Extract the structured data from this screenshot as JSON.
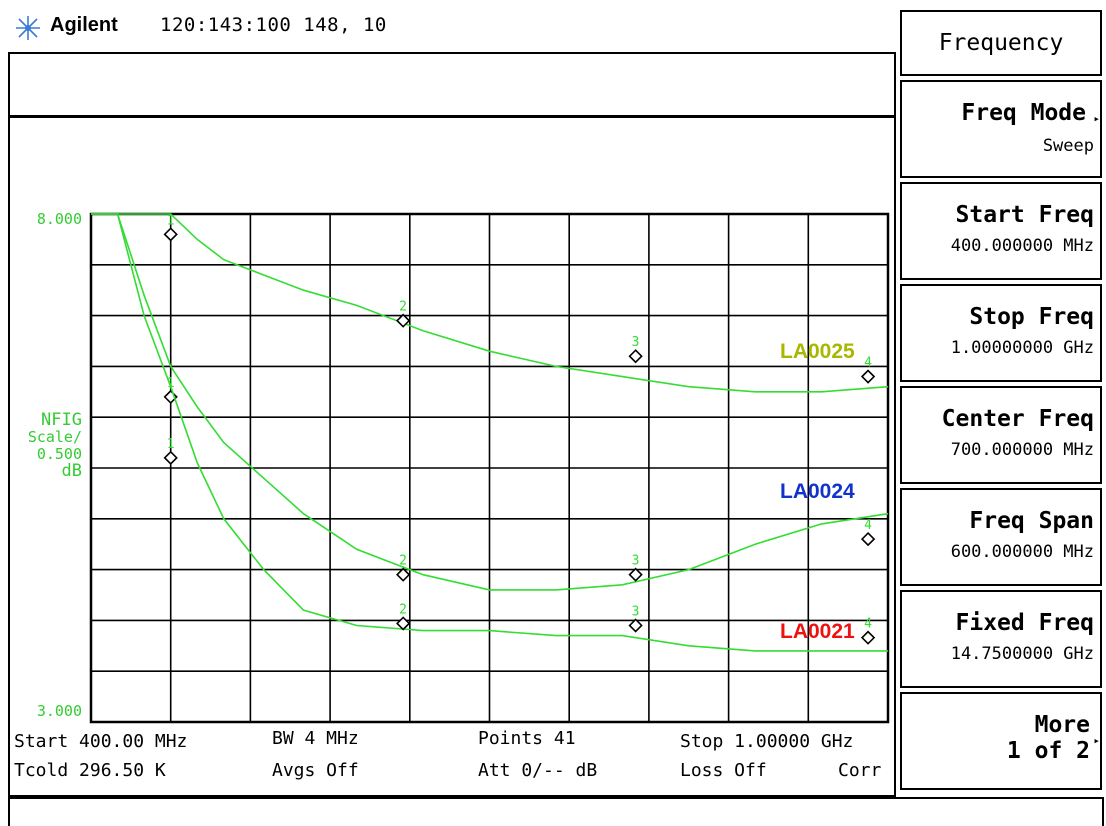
{
  "header": {
    "brand": "Agilent",
    "status": "120:143:100  148,  10"
  },
  "softkeys": {
    "menu_title": "Frequency",
    "items": [
      {
        "label": "Freq Mode",
        "value": "Sweep"
      },
      {
        "label": "Start Freq",
        "value": "400.000000 MHz"
      },
      {
        "label": "Stop Freq",
        "value": "1.00000000 GHz"
      },
      {
        "label": "Center Freq",
        "value": "700.000000 MHz"
      },
      {
        "label": "Freq Span",
        "value": "600.000000 MHz"
      },
      {
        "label": "Fixed Freq",
        "value": "14.7500000 GHz"
      },
      {
        "label": "More",
        "value": "1 of 2"
      }
    ]
  },
  "display": {
    "y_top": "8.000",
    "y_bottom": "3.000",
    "scale_lines": [
      "NFIG",
      "Scale/",
      "0.500",
      "dB"
    ]
  },
  "footer": {
    "start": "Start 400.00 MHz",
    "bw": "BW 4 MHz",
    "points": "Points 41",
    "stop": "Stop 1.00000 GHz",
    "tcold": "Tcold 296.50 K",
    "avgs": "Avgs Off",
    "att": "Att 0/-- dB",
    "loss": "Loss Off",
    "corr": "Corr"
  },
  "colors": {
    "trace": "#33dd33",
    "grid": "#000000",
    "LA0025": "#a8b800",
    "LA0024": "#1133cc",
    "LA0021": "#ee1111"
  },
  "chart_data": {
    "type": "line",
    "x_start_mhz": 400,
    "x_stop_mhz": 1000,
    "ylim": [
      3.0,
      8.0
    ],
    "series": [
      {
        "name": "LA0025",
        "x": [
          400,
          430,
          460,
          480,
          500,
          530,
          560,
          600,
          650,
          700,
          750,
          800,
          850,
          900,
          950,
          1000
        ],
        "y": [
          8.0,
          8.0,
          8.0,
          7.75,
          7.55,
          7.4,
          7.25,
          7.1,
          6.85,
          6.65,
          6.5,
          6.4,
          6.3,
          6.25,
          6.25,
          6.3
        ],
        "markers": [
          {
            "n": "1",
            "x": 460,
            "y": 7.8
          },
          {
            "n": "2",
            "x": 635,
            "y": 6.95
          },
          {
            "n": "3",
            "x": 810,
            "y": 6.6
          },
          {
            "n": "4",
            "x": 985,
            "y": 6.4
          }
        ]
      },
      {
        "name": "LA0024",
        "x": [
          400,
          420,
          440,
          460,
          480,
          500,
          530,
          560,
          600,
          650,
          700,
          750,
          800,
          850,
          900,
          950,
          1000
        ],
        "y": [
          8.0,
          8.0,
          7.2,
          6.5,
          6.1,
          5.75,
          5.4,
          5.05,
          4.7,
          4.45,
          4.3,
          4.3,
          4.35,
          4.5,
          4.75,
          4.95,
          5.05
        ],
        "markers": [
          {
            "n": "1",
            "x": 460,
            "y": 6.2
          },
          {
            "n": "2",
            "x": 635,
            "y": 4.45
          },
          {
            "n": "3",
            "x": 810,
            "y": 4.45
          },
          {
            "n": "4",
            "x": 985,
            "y": 4.8
          }
        ]
      },
      {
        "name": "LA0021",
        "x": [
          400,
          420,
          440,
          460,
          480,
          500,
          530,
          560,
          600,
          650,
          700,
          750,
          800,
          850,
          900,
          950,
          1000
        ],
        "y": [
          8.0,
          8.0,
          7.0,
          6.3,
          5.55,
          5.0,
          4.5,
          4.1,
          3.95,
          3.9,
          3.9,
          3.85,
          3.85,
          3.75,
          3.7,
          3.7,
          3.7
        ],
        "markers": [
          {
            "n": "1",
            "x": 460,
            "y": 5.6
          },
          {
            "n": "2",
            "x": 635,
            "y": 3.97
          },
          {
            "n": "3",
            "x": 810,
            "y": 3.95
          },
          {
            "n": "4",
            "x": 985,
            "y": 3.83
          }
        ]
      }
    ]
  }
}
